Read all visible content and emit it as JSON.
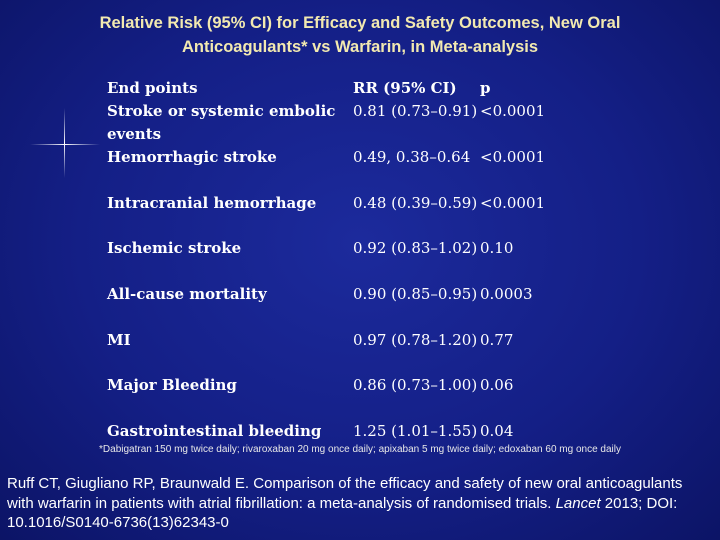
{
  "title": {
    "line1": "Relative Risk (95% CI) for Efficacy and Safety Outcomes, New Oral",
    "line2": "Anticoagulants* vs Warfarin, in Meta-analysis"
  },
  "table": {
    "headers": {
      "endpoint": "End points",
      "rr": "RR (95% CI)",
      "p": "p"
    },
    "rows": [
      {
        "endpoint": "Stroke or systemic embolic",
        "endpoint_cont": "events",
        "rr": "0.81 (0.73–0.91)",
        "p": "<0.0001"
      },
      {
        "endpoint": "Hemorrhagic stroke",
        "rr": "0.49, 0.38–0.64",
        "p": "<0.0001"
      },
      {
        "endpoint": "Intracranial hemorrhage",
        "rr": "0.48 (0.39–0.59)",
        "p": "<0.0001"
      },
      {
        "endpoint": "Ischemic stroke",
        "rr": "0.92 (0.83–1.02)",
        "p": "0.10"
      },
      {
        "endpoint": "All-cause mortality",
        "rr": "0.90 (0.85–0.95)",
        "p": "0.0003"
      },
      {
        "endpoint": "MI",
        "rr": "0.97 (0.78–1.20)",
        "p": "0.77"
      },
      {
        "endpoint": "Major Bleeding",
        "rr": "0.86 (0.73–1.00)",
        "p": "0.06"
      },
      {
        "endpoint": "Gastrointestinal bleeding",
        "rr": "1.25 (1.01–1.55)",
        "p": "0.04"
      }
    ]
  },
  "footnote": "*Dabigatran 150 mg twice daily; rivaroxaban 20 mg once daily; apixaban 5 mg twice daily; edoxaban 60 mg once daily",
  "reference": {
    "text": "Ruff CT, Giugliano RP, Braunwald E. Comparison of the efficacy and safety of new oral anticoagulants with warfarin in patients with atrial fibrillation: a meta-analysis of randomised trials.",
    "journal": "Lancet",
    "citation": "2013; DOI: 10.1016/S0140-6736(13)62343-0"
  },
  "colors": {
    "background": "#141f86",
    "title": "#f2e9b0",
    "text": "#ffffff"
  }
}
